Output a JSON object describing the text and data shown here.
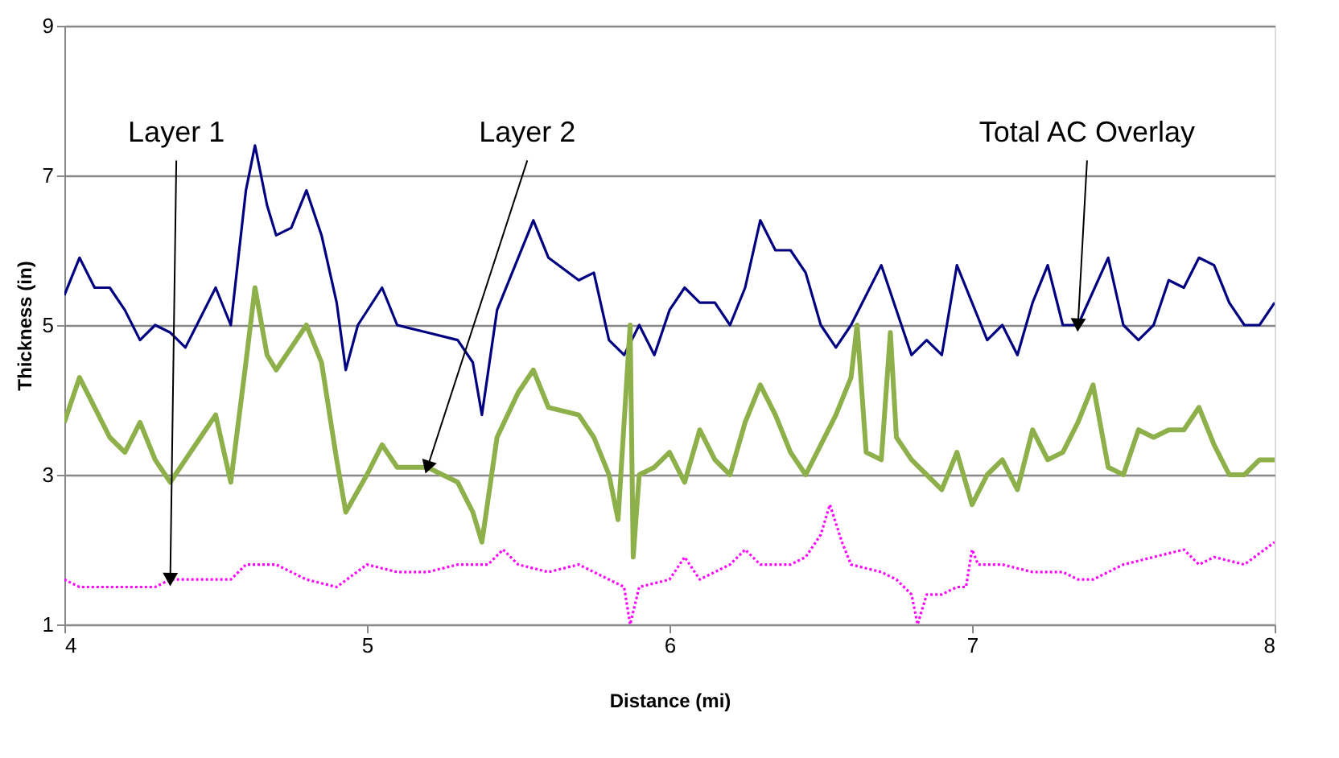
{
  "chart_data": {
    "type": "line",
    "xlabel": "Distance (mi)",
    "ylabel": "Thickness (in)",
    "xlim": [
      4,
      8
    ],
    "xticks": [
      4,
      5,
      6,
      7,
      8
    ],
    "ylim": [
      1,
      9
    ],
    "yticks": [
      1,
      3,
      5,
      7,
      9
    ],
    "grid": "y",
    "legend": false,
    "marker": "none",
    "series": [
      {
        "name": "Total AC Overlay",
        "color": "#000080",
        "line_style": "solid",
        "x": [
          4.0,
          4.05,
          4.1,
          4.15,
          4.2,
          4.25,
          4.3,
          4.35,
          4.4,
          4.45,
          4.5,
          4.55,
          4.6,
          4.63,
          4.67,
          4.7,
          4.75,
          4.8,
          4.85,
          4.9,
          4.93,
          4.97,
          5.05,
          5.1,
          5.2,
          5.3,
          5.35,
          5.38,
          5.43,
          5.5,
          5.55,
          5.6,
          5.7,
          5.75,
          5.8,
          5.85,
          5.9,
          5.95,
          6.0,
          6.05,
          6.1,
          6.15,
          6.2,
          6.25,
          6.3,
          6.35,
          6.4,
          6.45,
          6.5,
          6.55,
          6.6,
          6.7,
          6.75,
          6.8,
          6.85,
          6.9,
          6.95,
          7.0,
          7.05,
          7.1,
          7.15,
          7.2,
          7.25,
          7.3,
          7.35,
          7.45,
          7.5,
          7.55,
          7.6,
          7.65,
          7.7,
          7.75,
          7.8,
          7.85,
          7.9,
          7.95,
          8.0
        ],
        "values": [
          5.4,
          5.9,
          5.5,
          5.5,
          5.2,
          4.8,
          5.0,
          4.9,
          4.7,
          5.1,
          5.5,
          5.0,
          6.8,
          7.4,
          6.6,
          6.2,
          6.3,
          6.8,
          6.2,
          5.3,
          4.4,
          5.0,
          5.5,
          5.0,
          4.9,
          4.8,
          4.5,
          3.8,
          5.2,
          5.9,
          6.4,
          5.9,
          5.6,
          5.7,
          4.8,
          4.6,
          5.0,
          4.6,
          5.2,
          5.5,
          5.3,
          5.3,
          5.0,
          5.5,
          6.4,
          6.0,
          6.0,
          5.7,
          5.0,
          4.7,
          5.0,
          5.8,
          5.2,
          4.6,
          4.8,
          4.6,
          5.8,
          5.3,
          4.8,
          5.0,
          4.6,
          5.3,
          5.8,
          5.0,
          5.0,
          5.9,
          5.0,
          4.8,
          5.0,
          5.6,
          5.5,
          5.9,
          5.8,
          5.3,
          5.0,
          5.0,
          5.3
        ]
      },
      {
        "name": "Layer 2",
        "color": "#8db04a",
        "line_style": "solid",
        "x": [
          4.0,
          4.05,
          4.1,
          4.15,
          4.2,
          4.25,
          4.3,
          4.35,
          4.4,
          4.45,
          4.5,
          4.55,
          4.6,
          4.63,
          4.67,
          4.7,
          4.75,
          4.8,
          4.85,
          4.9,
          4.93,
          5.0,
          5.05,
          5.1,
          5.2,
          5.3,
          5.35,
          5.38,
          5.43,
          5.5,
          5.55,
          5.6,
          5.7,
          5.75,
          5.8,
          5.83,
          5.87,
          5.88,
          5.9,
          5.95,
          6.0,
          6.05,
          6.1,
          6.15,
          6.2,
          6.25,
          6.3,
          6.35,
          6.4,
          6.45,
          6.5,
          6.55,
          6.6,
          6.62,
          6.65,
          6.7,
          6.73,
          6.75,
          6.8,
          6.85,
          6.9,
          6.95,
          7.0,
          7.05,
          7.1,
          7.15,
          7.2,
          7.25,
          7.3,
          7.35,
          7.4,
          7.45,
          7.5,
          7.55,
          7.6,
          7.65,
          7.7,
          7.75,
          7.8,
          7.85,
          7.9,
          7.95,
          8.0
        ],
        "values": [
          3.7,
          4.3,
          3.9,
          3.5,
          3.3,
          3.7,
          3.2,
          2.9,
          3.2,
          3.5,
          3.8,
          2.9,
          4.5,
          5.5,
          4.6,
          4.4,
          4.7,
          5.0,
          4.5,
          3.2,
          2.5,
          3.0,
          3.4,
          3.1,
          3.1,
          2.9,
          2.5,
          2.1,
          3.5,
          4.1,
          4.4,
          3.9,
          3.8,
          3.5,
          3.0,
          2.4,
          5.0,
          1.9,
          3.0,
          3.1,
          3.3,
          2.9,
          3.6,
          3.2,
          3.0,
          3.7,
          4.2,
          3.8,
          3.3,
          3.0,
          3.4,
          3.8,
          4.3,
          5.0,
          3.3,
          3.2,
          4.9,
          3.5,
          3.2,
          3.0,
          2.8,
          3.3,
          2.6,
          3.0,
          3.2,
          2.8,
          3.6,
          3.2,
          3.3,
          3.7,
          4.2,
          3.1,
          3.0,
          3.6,
          3.5,
          3.6,
          3.6,
          3.9,
          3.4,
          3.0,
          3.0,
          3.2,
          3.2
        ]
      },
      {
        "name": "Layer 1",
        "color": "#ff00ff",
        "line_style": "dotted",
        "x": [
          4.0,
          4.05,
          4.1,
          4.2,
          4.3,
          4.35,
          4.45,
          4.55,
          4.6,
          4.7,
          4.8,
          4.9,
          5.0,
          5.1,
          5.2,
          5.3,
          5.4,
          5.45,
          5.5,
          5.6,
          5.7,
          5.8,
          5.85,
          5.87,
          5.9,
          6.0,
          6.05,
          6.1,
          6.2,
          6.25,
          6.3,
          6.4,
          6.45,
          6.5,
          6.53,
          6.57,
          6.6,
          6.7,
          6.75,
          6.8,
          6.82,
          6.85,
          6.9,
          6.95,
          6.98,
          7.0,
          7.02,
          7.1,
          7.2,
          7.3,
          7.35,
          7.4,
          7.5,
          7.6,
          7.7,
          7.75,
          7.8,
          7.9,
          8.0
        ],
        "values": [
          1.6,
          1.5,
          1.5,
          1.5,
          1.5,
          1.6,
          1.6,
          1.6,
          1.8,
          1.8,
          1.6,
          1.5,
          1.8,
          1.7,
          1.7,
          1.8,
          1.8,
          2.0,
          1.8,
          1.7,
          1.8,
          1.6,
          1.5,
          1.0,
          1.5,
          1.6,
          1.9,
          1.6,
          1.8,
          2.0,
          1.8,
          1.8,
          1.9,
          2.2,
          2.6,
          2.1,
          1.8,
          1.7,
          1.6,
          1.4,
          1.0,
          1.4,
          1.4,
          1.5,
          1.5,
          2.0,
          1.8,
          1.8,
          1.7,
          1.7,
          1.6,
          1.6,
          1.8,
          1.9,
          2.0,
          1.8,
          1.9,
          1.8,
          2.1
        ]
      }
    ]
  }
}
